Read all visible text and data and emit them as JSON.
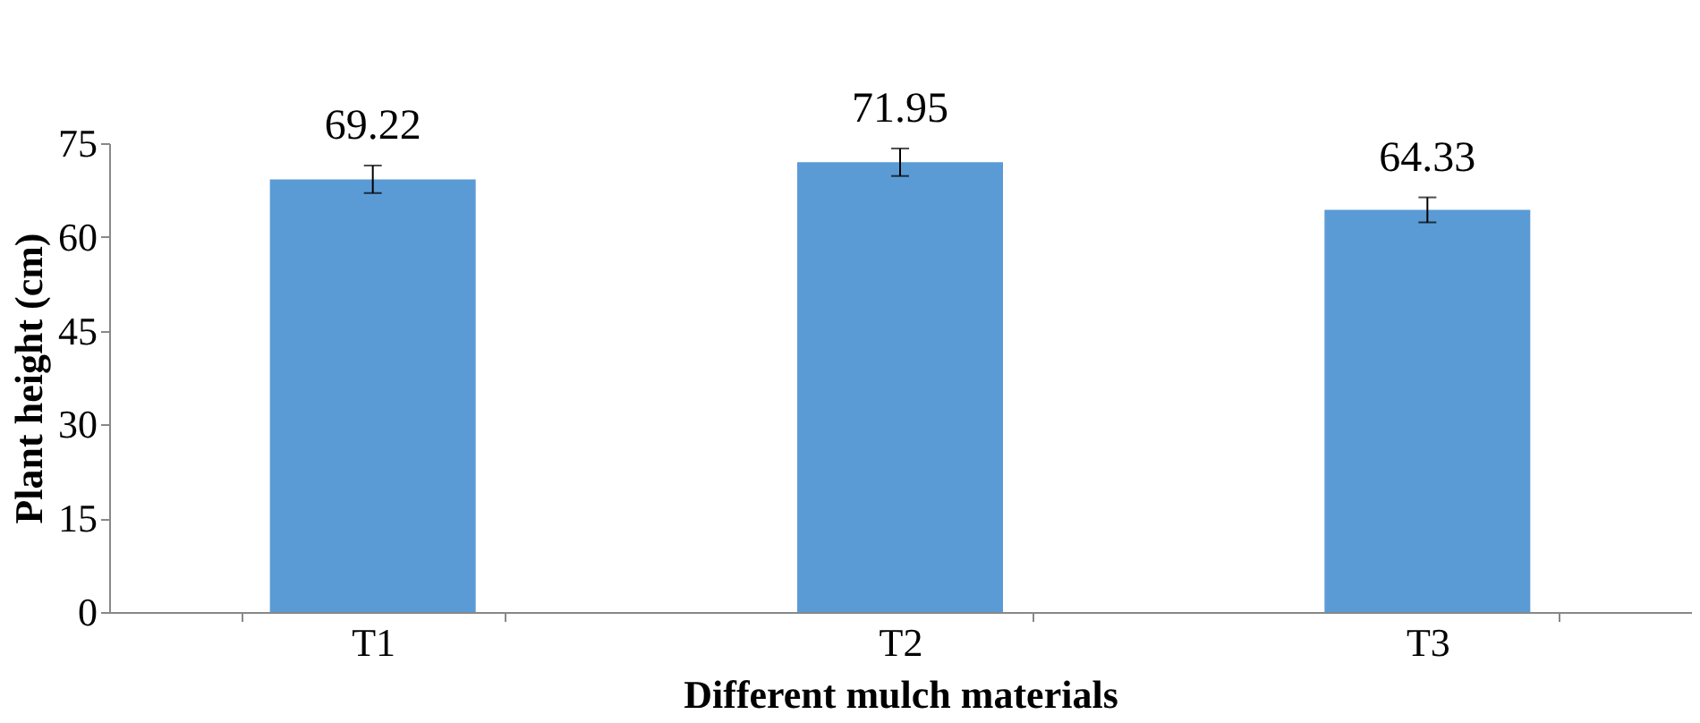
{
  "chart_data": {
    "type": "bar",
    "xlabel": "Different mulch materials",
    "ylabel": "Plant height (cm)",
    "categories": [
      "T1",
      "T2",
      "T3"
    ],
    "values": [
      69.22,
      71.95,
      64.33
    ],
    "errors": [
      2.2,
      2.2,
      2.0
    ],
    "color": "#5b9bd5",
    "ylim": [
      0,
      75
    ],
    "yticks": [
      0,
      15,
      30,
      45,
      60,
      75
    ],
    "data_labels": true
  }
}
